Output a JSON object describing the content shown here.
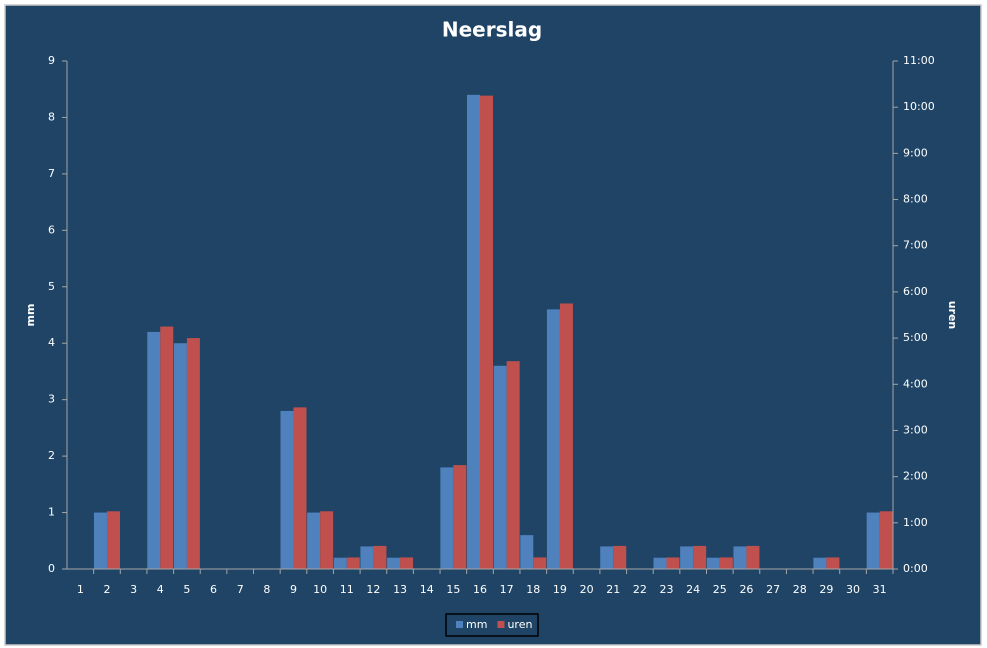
{
  "chart_data": {
    "type": "bar",
    "title": "Neerslag",
    "ylabel": "mm",
    "y2label": "uren",
    "categories": [
      "1",
      "2",
      "3",
      "4",
      "5",
      "6",
      "7",
      "8",
      "9",
      "10",
      "11",
      "12",
      "13",
      "14",
      "15",
      "16",
      "17",
      "18",
      "19",
      "20",
      "21",
      "22",
      "23",
      "24",
      "25",
      "26",
      "27",
      "28",
      "29",
      "30",
      "31"
    ],
    "series": [
      {
        "name": "mm",
        "color": "#4f81bd",
        "values": [
          0,
          1.0,
          0,
          4.2,
          4.0,
          0,
          0,
          0,
          2.8,
          1.0,
          0.2,
          0.4,
          0.2,
          0,
          1.8,
          8.4,
          3.6,
          0.6,
          4.6,
          0,
          0.4,
          0,
          0.2,
          0.4,
          0.2,
          0.4,
          0,
          0,
          0.2,
          0,
          1.0
        ]
      },
      {
        "name": "uren",
        "color": "#c0504d",
        "axis": "y2",
        "values": [
          0,
          1.25,
          0,
          5.25,
          5.0,
          0,
          0,
          0,
          3.5,
          1.25,
          0.25,
          0.5,
          0.25,
          0,
          2.25,
          10.25,
          4.5,
          0.25,
          5.75,
          0,
          0.5,
          0,
          0.25,
          0.5,
          0.25,
          0.5,
          0,
          0,
          0.25,
          0,
          1.25
        ]
      }
    ],
    "ylim": [
      0,
      9
    ],
    "yticks": [
      0,
      1,
      2,
      3,
      4,
      5,
      6,
      7,
      8,
      9
    ],
    "y2lim": [
      0,
      11
    ],
    "y2ticks": [
      {
        "value": 0,
        "label": "0:00"
      },
      {
        "value": 1,
        "label": "1:00"
      },
      {
        "value": 2,
        "label": "2:00"
      },
      {
        "value": 3,
        "label": "3:00"
      },
      {
        "value": 4,
        "label": "4:00"
      },
      {
        "value": 5,
        "label": "5:00"
      },
      {
        "value": 6,
        "label": "6:00"
      },
      {
        "value": 7,
        "label": "7:00"
      },
      {
        "value": 8,
        "label": "8:00"
      },
      {
        "value": 9,
        "label": "9:00"
      },
      {
        "value": 10,
        "label": "10:00"
      },
      {
        "value": 11,
        "label": "11:00"
      }
    ],
    "legend": "bottom"
  }
}
